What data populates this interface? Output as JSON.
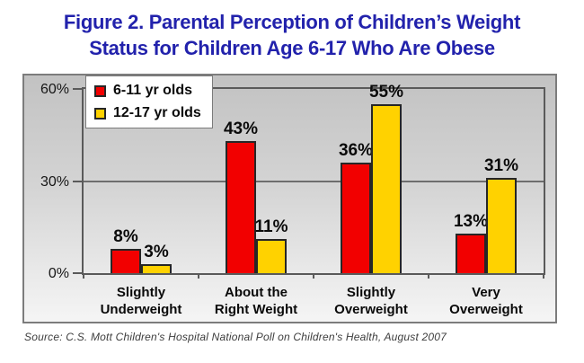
{
  "title": {
    "line1": "Figure 2. Parental Perception of Children’s Weight",
    "line2": "Status for Children Age 6-17 Who Are Obese"
  },
  "source": "Source: C.S. Mott Children's Hospital National Poll on Children's Health, August 2007",
  "colors": {
    "title_text": "#2222AC",
    "series_red": "#F20000",
    "series_yellow": "#FFD200",
    "bar_border": "#262626",
    "axis": "#5a5a5a",
    "gridline": "#6e6e6e",
    "label_text": "#0a0a0a"
  },
  "chart_data": {
    "type": "bar",
    "categories": [
      "Slightly\nUnderweight",
      "About the\nRight Weight",
      "Slightly\nOverweight",
      "Very\nOverweight"
    ],
    "series": [
      {
        "name": "6-11 yr olds",
        "color": "#F20000",
        "values": [
          8,
          43,
          36,
          13
        ]
      },
      {
        "name": "12-17 yr olds",
        "color": "#FFD200",
        "values": [
          3,
          11,
          55,
          31
        ]
      }
    ],
    "title": "Figure 2. Parental Perception of Children’s Weight Status for Children Age 6-17 Who Are Obese",
    "xlabel": "",
    "ylabel": "",
    "ylim": [
      0,
      60
    ],
    "yticks": [
      {
        "value": 0,
        "label": "0%"
      },
      {
        "value": 30,
        "label": "30%"
      },
      {
        "value": 60,
        "label": "60%"
      }
    ],
    "value_suffix": "%",
    "grid": "horizontal",
    "legend_position": "top-left"
  }
}
